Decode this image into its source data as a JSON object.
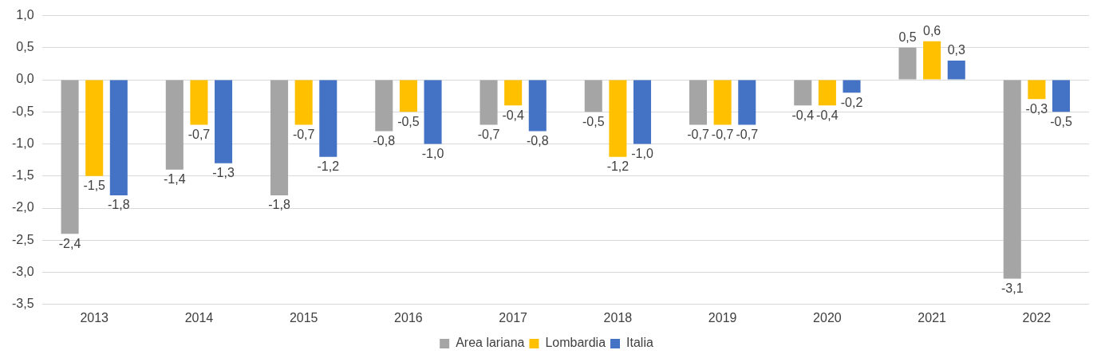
{
  "chart_data": {
    "type": "bar",
    "categories": [
      "2013",
      "2014",
      "2015",
      "2016",
      "2017",
      "2018",
      "2019",
      "2020",
      "2021",
      "2022"
    ],
    "series": [
      {
        "name": "Area lariana",
        "color": "#a5a5a5",
        "values": [
          -2.4,
          -1.4,
          -1.8,
          -0.8,
          -0.7,
          -0.5,
          -0.7,
          -0.4,
          0.5,
          -3.1
        ],
        "value_labels": [
          "-2,4",
          "-1,4",
          "-1,8",
          "-0,8",
          "-0,7",
          "-0,5",
          "-0,7",
          "-0,4",
          "0,5",
          "-3,1"
        ]
      },
      {
        "name": "Lombardia",
        "color": "#ffc000",
        "values": [
          -1.5,
          -0.7,
          -0.7,
          -0.5,
          -0.4,
          -1.2,
          -0.7,
          -0.4,
          0.6,
          -0.3
        ],
        "value_labels": [
          "-1,5",
          "-0,7",
          "-0,7",
          "-0,5",
          "-0,4",
          "-1,2",
          "-0,7",
          "-0,4",
          "0,6",
          "-0,3"
        ]
      },
      {
        "name": "Italia",
        "color": "#4472c4",
        "values": [
          -1.8,
          -1.3,
          -1.2,
          -1.0,
          -0.8,
          -1.0,
          -0.7,
          -0.2,
          0.3,
          -0.5
        ],
        "value_labels": [
          "-1,8",
          "-1,3",
          "-1,2",
          "-1,0",
          "-0,8",
          "-1,0",
          "-0,7",
          "-0,2",
          "0,3",
          "-0,5"
        ]
      }
    ],
    "ylim": [
      -3.5,
      1.0
    ],
    "yticks": [
      {
        "value": -3.5,
        "label": "-3,5"
      },
      {
        "value": -3.0,
        "label": "-3,0"
      },
      {
        "value": -2.5,
        "label": "-2,5"
      },
      {
        "value": -2.0,
        "label": "-2,0"
      },
      {
        "value": -1.5,
        "label": "-1,5"
      },
      {
        "value": -1.0,
        "label": "-1,0"
      },
      {
        "value": -0.5,
        "label": "-0,5"
      },
      {
        "value": 0,
        "label": "0,0"
      },
      {
        "value": 0.5,
        "label": "0,5"
      },
      {
        "value": 1.0,
        "label": "1,0"
      }
    ],
    "grid": "y",
    "legend": "bottom"
  }
}
